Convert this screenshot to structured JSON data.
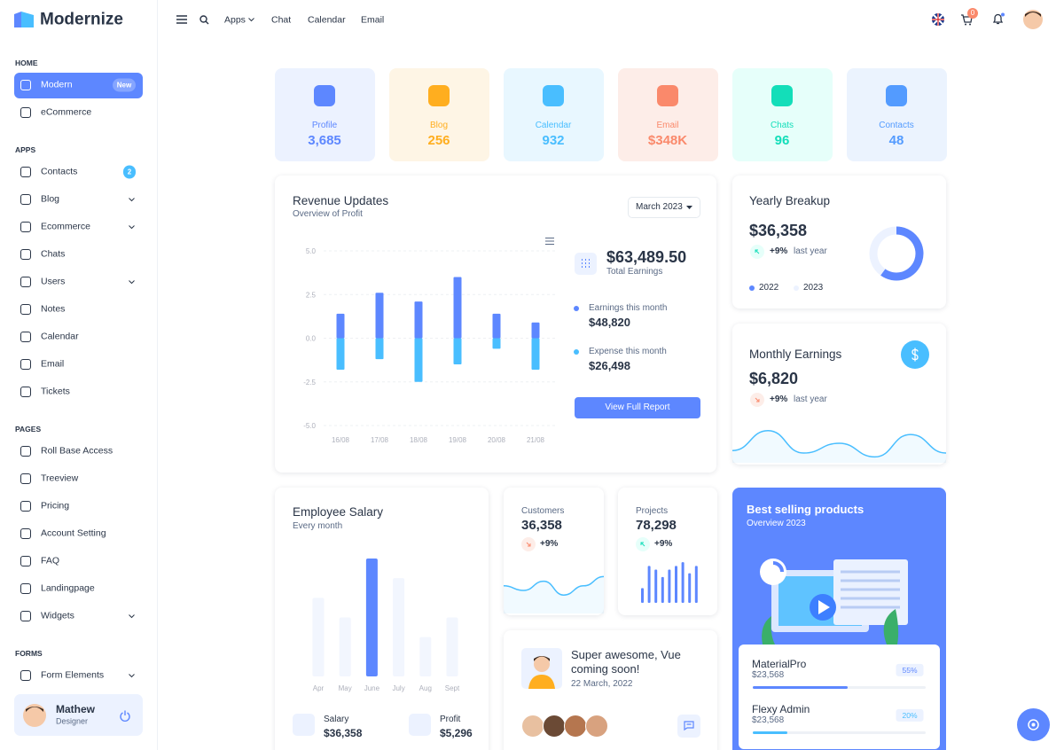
{
  "brand": "Modernize",
  "topnav": {
    "links": [
      "Apps",
      "Chat",
      "Calendar",
      "Email"
    ],
    "cart_count": "0"
  },
  "sidebar": {
    "sections": [
      {
        "title": "HOME",
        "items": [
          {
            "label": "Modern",
            "badge": "New",
            "active": true
          },
          {
            "label": "eCommerce"
          }
        ]
      },
      {
        "title": "APPS",
        "items": [
          {
            "label": "Contacts",
            "badge": "2"
          },
          {
            "label": "Blog",
            "expandable": true
          },
          {
            "label": "Ecommerce",
            "expandable": true
          },
          {
            "label": "Chats"
          },
          {
            "label": "Users",
            "expandable": true
          },
          {
            "label": "Notes"
          },
          {
            "label": "Calendar"
          },
          {
            "label": "Email"
          },
          {
            "label": "Tickets"
          }
        ]
      },
      {
        "title": "PAGES",
        "items": [
          {
            "label": "Roll Base Access"
          },
          {
            "label": "Treeview"
          },
          {
            "label": "Pricing"
          },
          {
            "label": "Account Setting"
          },
          {
            "label": "FAQ"
          },
          {
            "label": "Landingpage"
          },
          {
            "label": "Widgets",
            "expandable": true
          }
        ]
      },
      {
        "title": "FORMS",
        "items": [
          {
            "label": "Form Elements",
            "expandable": true
          }
        ]
      }
    ],
    "user": {
      "name": "Mathew",
      "role": "Designer"
    }
  },
  "stats": [
    {
      "label": "Profile",
      "value": "3,685",
      "color": "#5d87ff",
      "bg": "#ecf2ff"
    },
    {
      "label": "Blog",
      "value": "256",
      "color": "#ffae1f",
      "bg": "#fef5e5"
    },
    {
      "label": "Calendar",
      "value": "932",
      "color": "#49beff",
      "bg": "#e8f7ff"
    },
    {
      "label": "Email",
      "value": "$348K",
      "color": "#fa896b",
      "bg": "#fdede8"
    },
    {
      "label": "Chats",
      "value": "96",
      "color": "#13deb9",
      "bg": "#e6fffa"
    },
    {
      "label": "Contacts",
      "value": "48",
      "color": "#539bff",
      "bg": "#ebf3fe"
    }
  ],
  "revenue": {
    "title": "Revenue Updates",
    "subtitle": "Overview of Profit",
    "period": "March 2023",
    "chart": {
      "type": "bar",
      "categories": [
        "16/08",
        "17/08",
        "18/08",
        "19/08",
        "20/08",
        "21/08"
      ],
      "series": [
        {
          "color": "#5d87ff",
          "values": [
            1.4,
            2.6,
            2.1,
            3.5,
            1.4,
            0.9
          ]
        },
        {
          "color": "#49beff",
          "values": [
            -1.8,
            -1.2,
            -2.5,
            -1.5,
            -0.6,
            -1.8
          ]
        }
      ],
      "ylim": [
        -5,
        5
      ],
      "yticks": [
        {
          "value": 5,
          "label": "5.0"
        },
        {
          "value": 2.5,
          "label": "2.5"
        },
        {
          "value": 0,
          "label": "0.0"
        },
        {
          "value": -2.5,
          "label": "-2.5"
        },
        {
          "value": -5,
          "label": "-5.0"
        }
      ],
      "grid": true
    },
    "total": "$63,489.50",
    "total_label": "Total Earnings",
    "breakdown": [
      {
        "label": "Earnings this month",
        "value": "$48,820",
        "color": "#5d87ff"
      },
      {
        "label": "Expense this month",
        "value": "$26,498",
        "color": "#49beff"
      }
    ],
    "button": "View Full Report"
  },
  "yearly": {
    "title": "Yearly Breakup",
    "amount": "$36,358",
    "change": "+9%",
    "change_note": "last year",
    "chart": {
      "type": "pie",
      "series": [
        {
          "name": "2022",
          "color": "#5d87ff",
          "value": 60
        },
        {
          "name": "2023",
          "color": "#ecf2ff",
          "value": 40
        }
      ]
    }
  },
  "monthly": {
    "title": "Monthly Earnings",
    "amount": "$6,820",
    "change": "+9%",
    "change_note": "last year",
    "chart": {
      "type": "area",
      "color": "#49beff",
      "values": [
        25,
        66,
        20,
        40,
        12,
        58,
        20
      ],
      "ylim": [
        0,
        80
      ]
    }
  },
  "salary": {
    "title": "Employee Salary",
    "subtitle": "Every month",
    "chart": {
      "type": "bar",
      "categories": [
        "Apr",
        "May",
        "June",
        "July",
        "Aug",
        "Sept"
      ],
      "values": [
        20,
        15,
        30,
        25,
        10,
        15
      ],
      "colors": [
        "#f2f6fe",
        "#f2f6fe",
        "#5d87ff",
        "#f2f6fe",
        "#f2f6fe",
        "#f2f6fe"
      ],
      "ylim": [
        0,
        30
      ]
    },
    "stats": [
      {
        "label": "Salary",
        "value": "$36,358"
      },
      {
        "label": "Profit",
        "value": "$5,296"
      }
    ]
  },
  "customers": {
    "label": "Customers",
    "value": "36,358",
    "change": "+9%",
    "chart": {
      "type": "area",
      "color": "#49beff",
      "values": [
        30,
        25,
        35,
        20,
        30,
        40
      ],
      "ylim": [
        0,
        50
      ]
    }
  },
  "projects": {
    "label": "Projects",
    "value": "78,298",
    "change": "+9%",
    "chart": {
      "type": "bar",
      "color": "#5d87ff",
      "values": [
        4,
        10,
        9,
        7,
        9,
        10,
        11,
        8,
        10
      ],
      "ylim": [
        0,
        12
      ]
    }
  },
  "promo": {
    "title": "Super awesome, Vue coming soon!",
    "date": "22 March, 2022"
  },
  "best_selling": {
    "title": "Best selling products",
    "subtitle": "Overview 2023",
    "products": [
      {
        "name": "MaterialPro",
        "price": "$23,568",
        "progress": 55,
        "progress_label": "55%",
        "color": "#5d87ff"
      },
      {
        "name": "Flexy Admin",
        "price": "$23,568",
        "progress": 20,
        "progress_label": "20%",
        "color": "#49beff"
      }
    ]
  }
}
